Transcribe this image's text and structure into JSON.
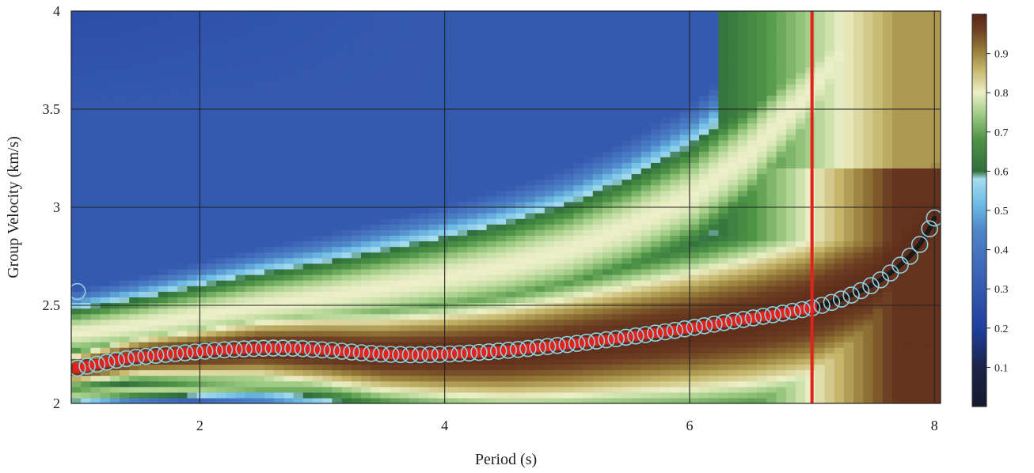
{
  "chart_data": {
    "type": "heatmap",
    "title": "",
    "xlabel": "Period (s)",
    "ylabel": "Group Velocity (km/s)",
    "xlim": [
      0.95,
      8.05
    ],
    "ylim": [
      2.0,
      4.0
    ],
    "x_ticks": [
      {
        "value": 2,
        "label": "2"
      },
      {
        "value": 4,
        "label": "4"
      },
      {
        "value": 6,
        "label": "6"
      },
      {
        "value": 8,
        "label": "8"
      }
    ],
    "y_ticks": [
      {
        "value": 2.0,
        "label": "2"
      },
      {
        "value": 2.5,
        "label": "2.5"
      },
      {
        "value": 3.0,
        "label": "3"
      },
      {
        "value": 3.5,
        "label": "3.5"
      },
      {
        "value": 4.0,
        "label": "4"
      }
    ],
    "grid": true,
    "colorbar": {
      "range": [
        0,
        1
      ],
      "ticks": [
        {
          "value": 0.1,
          "label": "0.1"
        },
        {
          "value": 0.2,
          "label": "0.2"
        },
        {
          "value": 0.3,
          "label": "0.3"
        },
        {
          "value": 0.4,
          "label": "0.4"
        },
        {
          "value": 0.5,
          "label": "0.5"
        },
        {
          "value": 0.6,
          "label": "0.6"
        },
        {
          "value": 0.7,
          "label": "0.7"
        },
        {
          "value": 0.8,
          "label": "0.8"
        },
        {
          "value": 0.9,
          "label": "0.9"
        }
      ],
      "stops": [
        {
          "value": 0.0,
          "color": "#141a2e"
        },
        {
          "value": 0.1,
          "color": "#1b2348"
        },
        {
          "value": 0.2,
          "color": "#1f3f9e"
        },
        {
          "value": 0.35,
          "color": "#3f67b8"
        },
        {
          "value": 0.45,
          "color": "#4e86c8"
        },
        {
          "value": 0.52,
          "color": "#6fbde6"
        },
        {
          "value": 0.58,
          "color": "#a8dcef"
        },
        {
          "value": 0.6,
          "color": "#2f6e3c"
        },
        {
          "value": 0.68,
          "color": "#4e9446"
        },
        {
          "value": 0.75,
          "color": "#a6cf8a"
        },
        {
          "value": 0.8,
          "color": "#ecefc7"
        },
        {
          "value": 0.86,
          "color": "#c4b56a"
        },
        {
          "value": 0.91,
          "color": "#947a38"
        },
        {
          "value": 0.96,
          "color": "#6d3f22"
        },
        {
          "value": 1.0,
          "color": "#5a2717"
        }
      ]
    },
    "ridges": [
      {
        "x": [
          1.0,
          1.5,
          2.0,
          2.5,
          3.0,
          3.5,
          4.0,
          4.5,
          5.0,
          5.5,
          6.0,
          6.5,
          7.0,
          7.5,
          8.0
        ],
        "y": [
          2.18,
          2.24,
          2.26,
          2.28,
          2.27,
          2.25,
          2.25,
          2.26,
          2.29,
          2.33,
          2.37,
          2.42,
          2.49,
          2.62,
          2.95
        ]
      },
      {
        "x": [
          1.0,
          1.5,
          2.0,
          2.5,
          3.0,
          3.5,
          4.0,
          4.5,
          5.0,
          5.5,
          6.0,
          6.5,
          7.0,
          7.5,
          8.0
        ],
        "y": [
          2.36,
          2.4,
          2.45,
          2.5,
          2.54,
          2.59,
          2.64,
          2.7,
          2.78,
          2.9,
          3.05,
          3.28,
          3.6,
          4.0,
          4.0
        ]
      },
      {
        "x": [
          1.0,
          1.5,
          2.0,
          2.5,
          3.0,
          3.5,
          4.0,
          4.5,
          5.0,
          5.5,
          6.0,
          6.5,
          7.0,
          7.5,
          8.0
        ],
        "y": [
          2.05,
          2.07,
          2.08,
          2.09,
          2.09,
          2.08,
          2.08,
          2.09,
          2.11,
          2.13,
          2.15,
          2.17,
          2.19,
          2.22,
          2.26
        ]
      }
    ],
    "vertical_marker": {
      "x": 7.0,
      "color": "#e3221c"
    },
    "picked_points": {
      "x": [
        1.0,
        1.08,
        1.16,
        1.24,
        1.32,
        1.4,
        1.48,
        1.56,
        1.64,
        1.72,
        1.8,
        1.88,
        1.96,
        2.04,
        2.12,
        2.2,
        2.28,
        2.36,
        2.44,
        2.52,
        2.6,
        2.68,
        2.76,
        2.84,
        2.92,
        3.0,
        3.08,
        3.16,
        3.24,
        3.32,
        3.4,
        3.48,
        3.56,
        3.64,
        3.72,
        3.8,
        3.88,
        3.96,
        4.04,
        4.12,
        4.2,
        4.28,
        4.36,
        4.44,
        4.52,
        4.6,
        4.68,
        4.76,
        4.84,
        4.92,
        5.0,
        5.08,
        5.16,
        5.24,
        5.32,
        5.4,
        5.48,
        5.56,
        5.64,
        5.72,
        5.8,
        5.88,
        5.96,
        6.04,
        6.12,
        6.2,
        6.28,
        6.36,
        6.44,
        6.52,
        6.6,
        6.68,
        6.76,
        6.84,
        6.92,
        7.0
      ],
      "y": [
        2.18,
        2.19,
        2.2,
        2.21,
        2.22,
        2.228,
        2.235,
        2.24,
        2.245,
        2.25,
        2.254,
        2.258,
        2.262,
        2.266,
        2.27,
        2.273,
        2.276,
        2.278,
        2.28,
        2.281,
        2.282,
        2.282,
        2.281,
        2.279,
        2.276,
        2.273,
        2.27,
        2.266,
        2.262,
        2.258,
        2.255,
        2.252,
        2.25,
        2.249,
        2.248,
        2.248,
        2.249,
        2.25,
        2.252,
        2.254,
        2.257,
        2.26,
        2.263,
        2.267,
        2.271,
        2.275,
        2.28,
        2.285,
        2.29,
        2.295,
        2.3,
        2.306,
        2.312,
        2.318,
        2.324,
        2.33,
        2.337,
        2.344,
        2.351,
        2.358,
        2.365,
        2.372,
        2.38,
        2.388,
        2.396,
        2.404,
        2.412,
        2.42,
        2.428,
        2.436,
        2.444,
        2.452,
        2.46,
        2.469,
        2.478,
        2.487
      ],
      "color": "#e3221c"
    },
    "extrapolated_points": {
      "x": [
        7.08,
        7.16,
        7.24,
        7.32,
        7.4,
        7.48,
        7.56,
        7.64,
        7.72,
        7.8,
        7.88,
        7.96,
        8.0
      ],
      "y": [
        2.5,
        2.515,
        2.532,
        2.552,
        2.575,
        2.6,
        2.63,
        2.665,
        2.705,
        2.75,
        2.81,
        2.89,
        2.945
      ],
      "color": "#1a1a1a"
    },
    "outlier_points": {
      "x": [
        1.0
      ],
      "y": [
        2.57
      ]
    },
    "circle_color": "#8fcfe0"
  }
}
